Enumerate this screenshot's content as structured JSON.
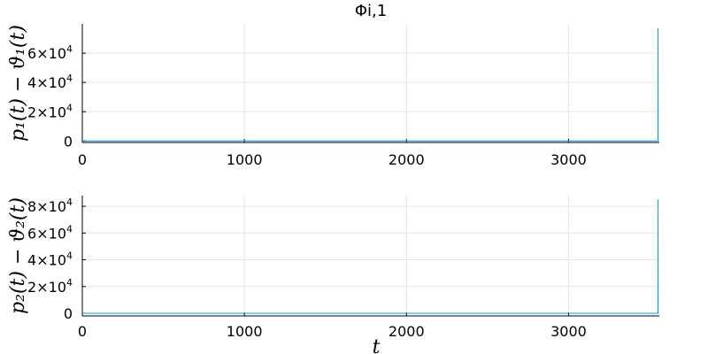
{
  "chart_data": [
    {
      "type": "line",
      "title": "Φi,1",
      "xlabel": "",
      "ylabel": "p₁(t) − ϑ₁(t)",
      "xlim": [
        0,
        3560
      ],
      "ylim": [
        -1000,
        80000
      ],
      "xticks": [
        0,
        1000,
        2000,
        3000
      ],
      "xtick_labels": [
        "0",
        "1000",
        "2000",
        "3000"
      ],
      "yticks": [
        0,
        20000,
        40000,
        60000
      ],
      "ytick_labels": [
        {
          "base": "0",
          "exp": ""
        },
        {
          "base": "2×10",
          "exp": "4"
        },
        {
          "base": "4×10",
          "exp": "4"
        },
        {
          "base": "6×10",
          "exp": "4"
        }
      ],
      "grid": true,
      "line_color": "#009af9",
      "series": [
        {
          "x": [
            0,
            3552,
            3552,
            3553
          ],
          "y": [
            0,
            0,
            77000,
            0
          ]
        }
      ]
    },
    {
      "type": "line",
      "title": "",
      "xlabel": "t",
      "ylabel": "p₂(t) − ϑ₂(t)",
      "xlim": [
        0,
        3560
      ],
      "ylim": [
        -2000,
        88000
      ],
      "xticks": [
        0,
        1000,
        2000,
        3000
      ],
      "xtick_labels": [
        "0",
        "1000",
        "2000",
        "3000"
      ],
      "yticks": [
        0,
        20000,
        40000,
        60000,
        80000
      ],
      "ytick_labels": [
        {
          "base": "0",
          "exp": ""
        },
        {
          "base": "2×10",
          "exp": "4"
        },
        {
          "base": "4×10",
          "exp": "4"
        },
        {
          "base": "6×10",
          "exp": "4"
        },
        {
          "base": "8×10",
          "exp": "4"
        }
      ],
      "grid": true,
      "line_color": "#009af9",
      "series": [
        {
          "x": [
            0,
            3552,
            3552,
            3553
          ],
          "y": [
            0,
            0,
            85000,
            0
          ]
        }
      ]
    }
  ]
}
